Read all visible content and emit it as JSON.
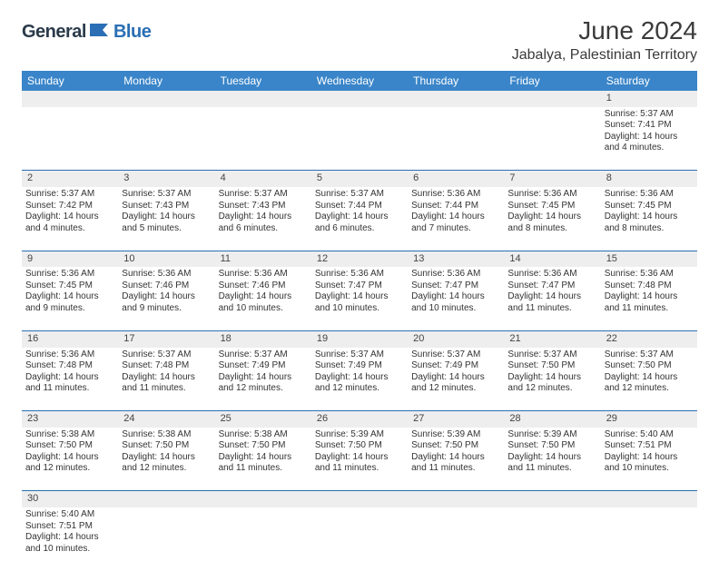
{
  "brand": {
    "text_dark": "General",
    "text_blue": "Blue"
  },
  "title": "June 2024",
  "location": "Jabalya, Palestinian Territory",
  "colors": {
    "header_bg": "#3a85c9",
    "header_text": "#ffffff",
    "daynum_bg": "#eeeeee",
    "rule": "#2a6fb5",
    "brand_dark": "#2a3a4a",
    "brand_blue": "#2a6fb5"
  },
  "weekdays": [
    "Sunday",
    "Monday",
    "Tuesday",
    "Wednesday",
    "Thursday",
    "Friday",
    "Saturday"
  ],
  "weeks": [
    [
      null,
      null,
      null,
      null,
      null,
      null,
      {
        "d": "1",
        "sr": "5:37 AM",
        "ss": "7:41 PM",
        "dl": "14 hours and 4 minutes."
      }
    ],
    [
      {
        "d": "2",
        "sr": "5:37 AM",
        "ss": "7:42 PM",
        "dl": "14 hours and 4 minutes."
      },
      {
        "d": "3",
        "sr": "5:37 AM",
        "ss": "7:43 PM",
        "dl": "14 hours and 5 minutes."
      },
      {
        "d": "4",
        "sr": "5:37 AM",
        "ss": "7:43 PM",
        "dl": "14 hours and 6 minutes."
      },
      {
        "d": "5",
        "sr": "5:37 AM",
        "ss": "7:44 PM",
        "dl": "14 hours and 6 minutes."
      },
      {
        "d": "6",
        "sr": "5:36 AM",
        "ss": "7:44 PM",
        "dl": "14 hours and 7 minutes."
      },
      {
        "d": "7",
        "sr": "5:36 AM",
        "ss": "7:45 PM",
        "dl": "14 hours and 8 minutes."
      },
      {
        "d": "8",
        "sr": "5:36 AM",
        "ss": "7:45 PM",
        "dl": "14 hours and 8 minutes."
      }
    ],
    [
      {
        "d": "9",
        "sr": "5:36 AM",
        "ss": "7:45 PM",
        "dl": "14 hours and 9 minutes."
      },
      {
        "d": "10",
        "sr": "5:36 AM",
        "ss": "7:46 PM",
        "dl": "14 hours and 9 minutes."
      },
      {
        "d": "11",
        "sr": "5:36 AM",
        "ss": "7:46 PM",
        "dl": "14 hours and 10 minutes."
      },
      {
        "d": "12",
        "sr": "5:36 AM",
        "ss": "7:47 PM",
        "dl": "14 hours and 10 minutes."
      },
      {
        "d": "13",
        "sr": "5:36 AM",
        "ss": "7:47 PM",
        "dl": "14 hours and 10 minutes."
      },
      {
        "d": "14",
        "sr": "5:36 AM",
        "ss": "7:47 PM",
        "dl": "14 hours and 11 minutes."
      },
      {
        "d": "15",
        "sr": "5:36 AM",
        "ss": "7:48 PM",
        "dl": "14 hours and 11 minutes."
      }
    ],
    [
      {
        "d": "16",
        "sr": "5:36 AM",
        "ss": "7:48 PM",
        "dl": "14 hours and 11 minutes."
      },
      {
        "d": "17",
        "sr": "5:37 AM",
        "ss": "7:48 PM",
        "dl": "14 hours and 11 minutes."
      },
      {
        "d": "18",
        "sr": "5:37 AM",
        "ss": "7:49 PM",
        "dl": "14 hours and 12 minutes."
      },
      {
        "d": "19",
        "sr": "5:37 AM",
        "ss": "7:49 PM",
        "dl": "14 hours and 12 minutes."
      },
      {
        "d": "20",
        "sr": "5:37 AM",
        "ss": "7:49 PM",
        "dl": "14 hours and 12 minutes."
      },
      {
        "d": "21",
        "sr": "5:37 AM",
        "ss": "7:50 PM",
        "dl": "14 hours and 12 minutes."
      },
      {
        "d": "22",
        "sr": "5:37 AM",
        "ss": "7:50 PM",
        "dl": "14 hours and 12 minutes."
      }
    ],
    [
      {
        "d": "23",
        "sr": "5:38 AM",
        "ss": "7:50 PM",
        "dl": "14 hours and 12 minutes."
      },
      {
        "d": "24",
        "sr": "5:38 AM",
        "ss": "7:50 PM",
        "dl": "14 hours and 12 minutes."
      },
      {
        "d": "25",
        "sr": "5:38 AM",
        "ss": "7:50 PM",
        "dl": "14 hours and 11 minutes."
      },
      {
        "d": "26",
        "sr": "5:39 AM",
        "ss": "7:50 PM",
        "dl": "14 hours and 11 minutes."
      },
      {
        "d": "27",
        "sr": "5:39 AM",
        "ss": "7:50 PM",
        "dl": "14 hours and 11 minutes."
      },
      {
        "d": "28",
        "sr": "5:39 AM",
        "ss": "7:50 PM",
        "dl": "14 hours and 11 minutes."
      },
      {
        "d": "29",
        "sr": "5:40 AM",
        "ss": "7:51 PM",
        "dl": "14 hours and 10 minutes."
      }
    ],
    [
      {
        "d": "30",
        "sr": "5:40 AM",
        "ss": "7:51 PM",
        "dl": "14 hours and 10 minutes."
      },
      null,
      null,
      null,
      null,
      null,
      null
    ]
  ],
  "labels": {
    "sunrise": "Sunrise:",
    "sunset": "Sunset:",
    "daylight": "Daylight:"
  }
}
